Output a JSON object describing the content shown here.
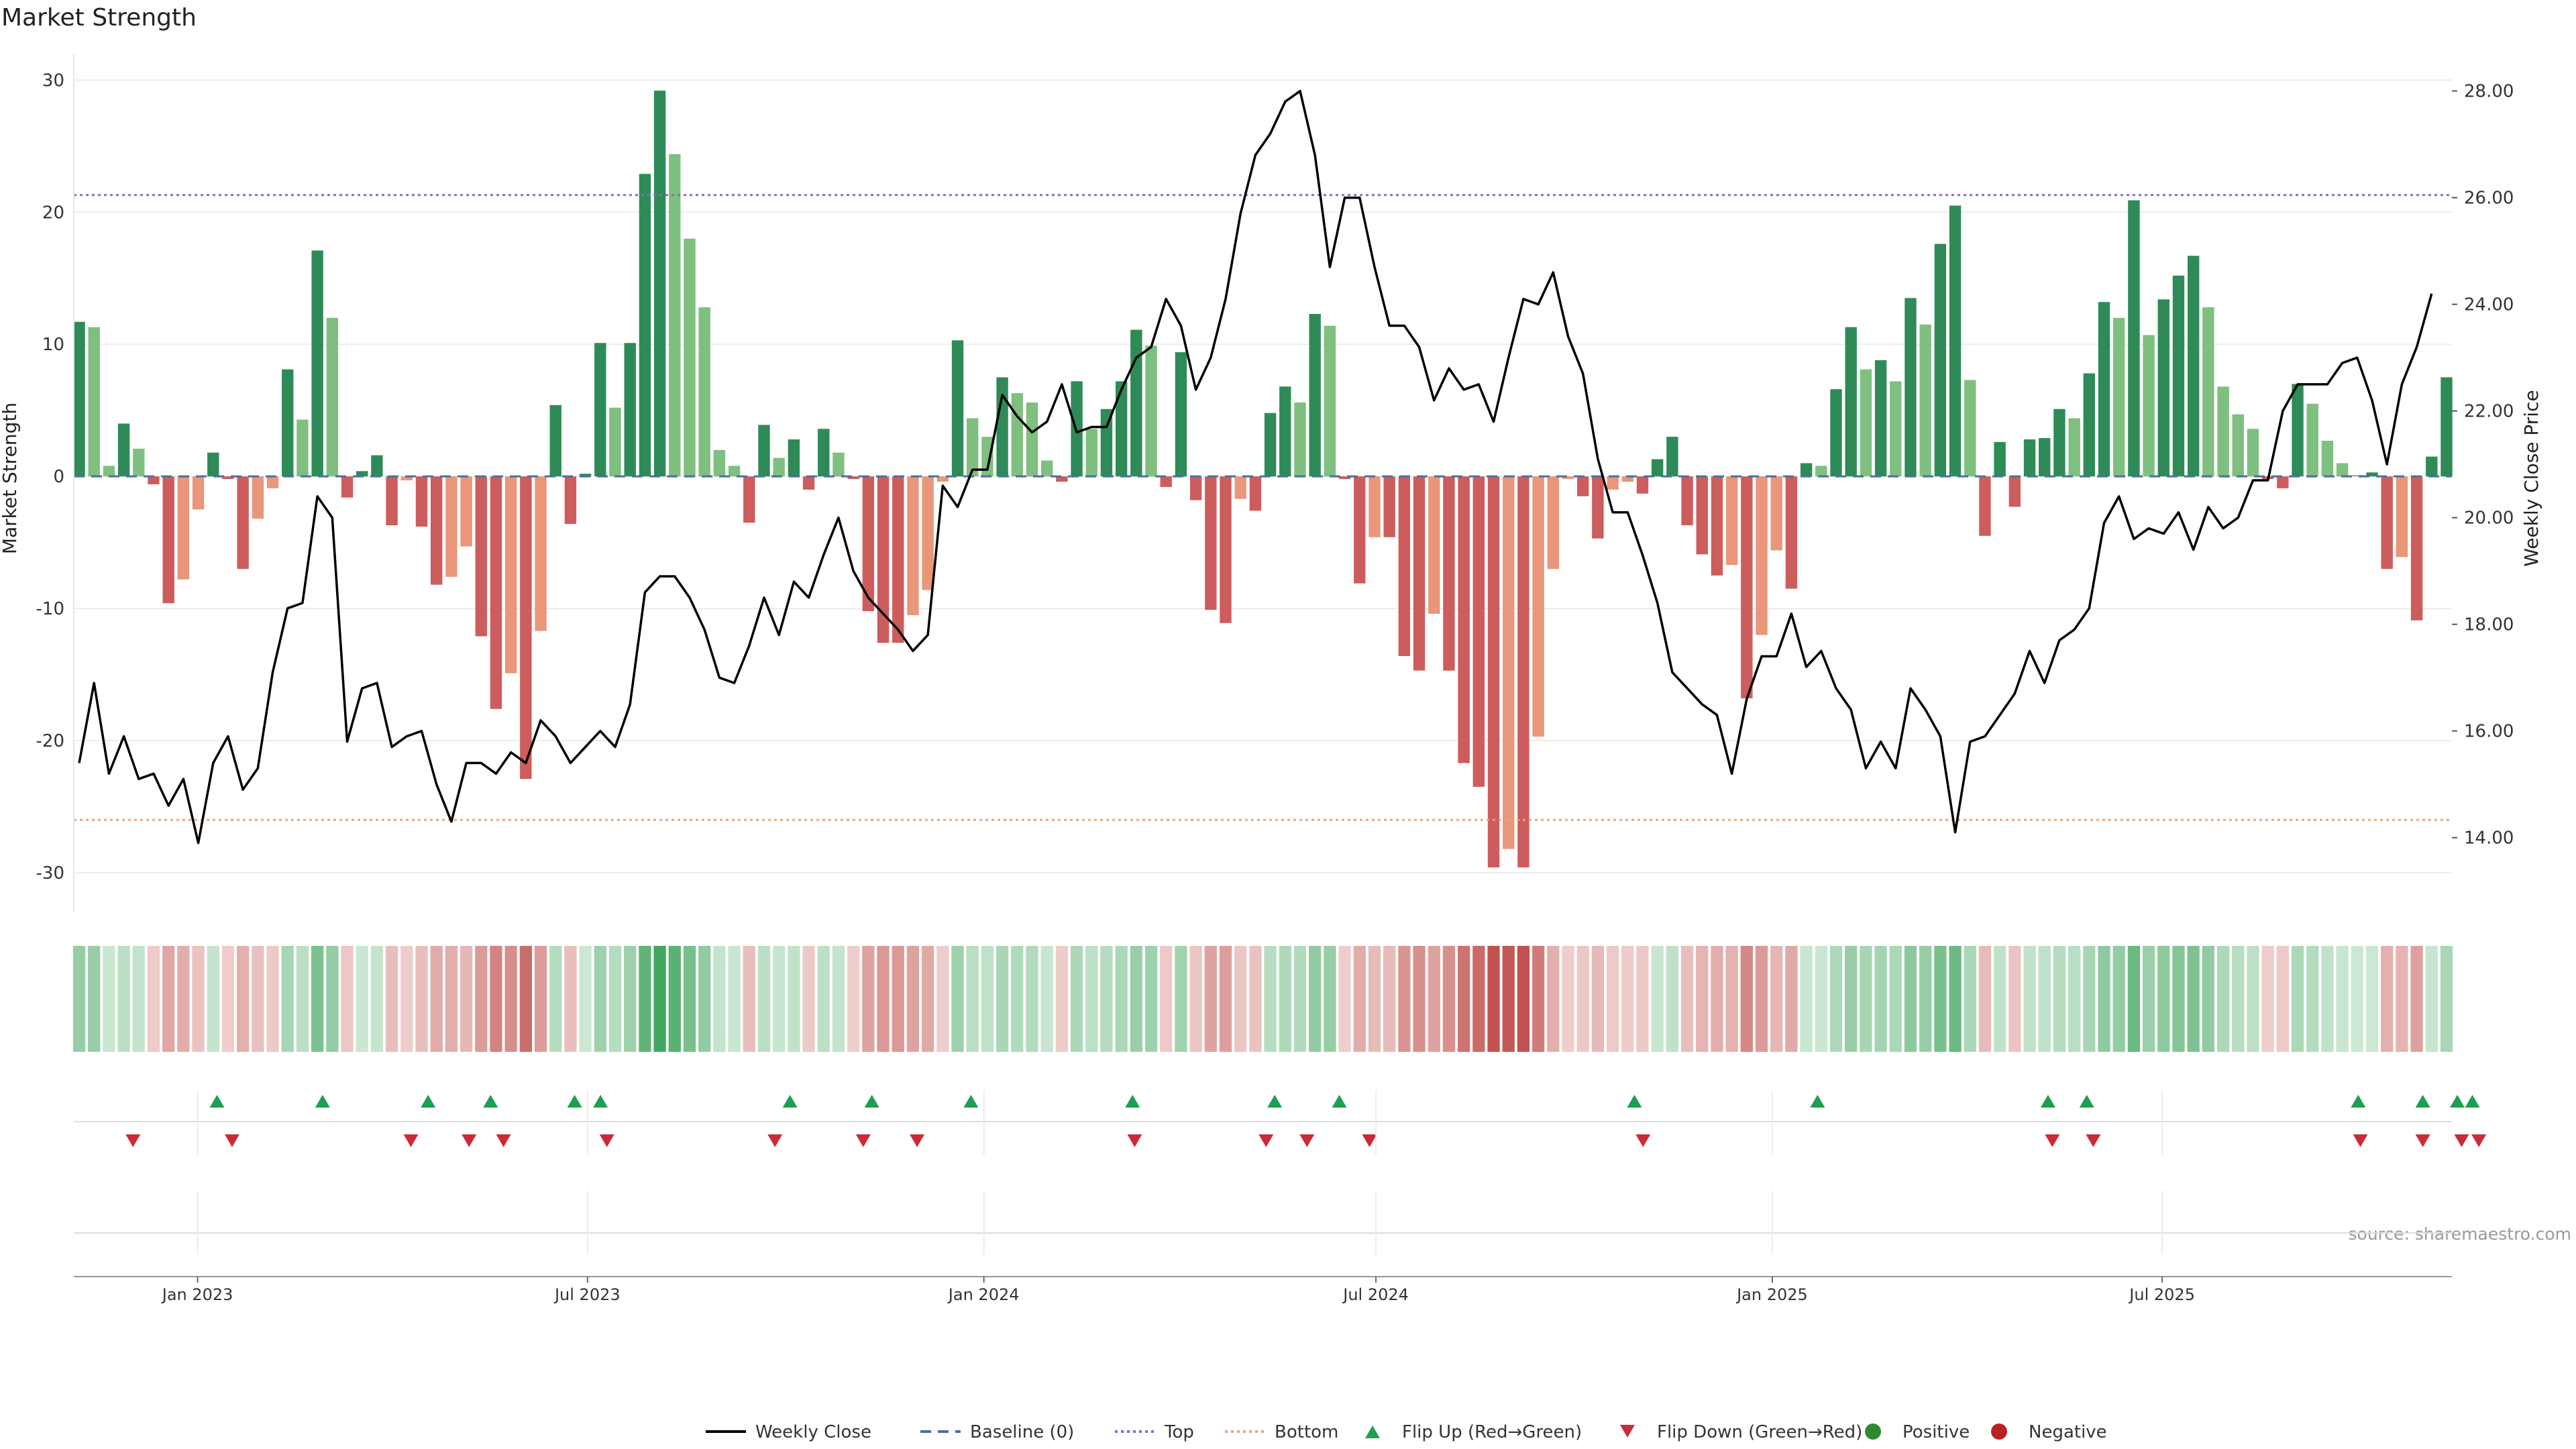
{
  "chart_data": {
    "type": "bar",
    "title": "Market Strength",
    "ylabel_left": "Market Strength",
    "ylabel_right": "Weekly Close Price",
    "source": "source: sharemaestro.com",
    "ylim_left": [
      -33,
      32
    ],
    "ylim_right": [
      12.6,
      28.7
    ],
    "yticks_left": [
      30,
      20,
      10,
      0,
      -10,
      -20,
      -30
    ],
    "yticks_right": [
      "28.00",
      "26.00",
      "24.00",
      "22.00",
      "20.00",
      "18.00",
      "16.00",
      "14.00"
    ],
    "x_start": "2022-11-07",
    "x_end": "2025-11-10",
    "x_ticks": [
      {
        "date": "2023-01-01",
        "label": "Jan 2023"
      },
      {
        "date": "2023-07-01",
        "label": "Jul 2023"
      },
      {
        "date": "2024-01-01",
        "label": "Jan 2024"
      },
      {
        "date": "2024-07-01",
        "label": "Jul 2024"
      },
      {
        "date": "2025-01-01",
        "label": "Jan 2025"
      },
      {
        "date": "2025-07-01",
        "label": "Jul 2025"
      }
    ],
    "top_line": 21.3,
    "bottom_line": -26.0,
    "strength": [
      11.7,
      11.3,
      0.8,
      4.0,
      2.1,
      -0.6,
      -9.6,
      -7.8,
      -2.5,
      1.8,
      -0.2,
      -7.0,
      -3.2,
      -0.9,
      8.1,
      4.3,
      17.1,
      12.0,
      -1.6,
      0.4,
      1.6,
      -3.7,
      -0.3,
      -3.8,
      -8.2,
      -7.6,
      -5.3,
      -12.1,
      -17.6,
      -14.9,
      -22.9,
      -11.7,
      5.4,
      -3.6,
      0.2,
      10.1,
      5.2,
      10.1,
      22.9,
      29.2,
      24.4,
      18.0,
      12.8,
      2.0,
      0.8,
      -3.5,
      3.9,
      1.4,
      2.8,
      -1.0,
      3.6,
      1.8,
      -0.2,
      -10.2,
      -12.6,
      -12.6,
      -10.5,
      -8.6,
      -0.4,
      10.3,
      4.4,
      3.0,
      7.5,
      6.3,
      5.6,
      1.2,
      -0.4,
      7.2,
      3.6,
      5.1,
      7.2,
      11.1,
      9.9,
      -0.8,
      9.4,
      -1.8,
      -10.1,
      -11.1,
      -1.7,
      -2.6,
      4.8,
      6.8,
      5.6,
      12.3,
      11.4,
      -0.2,
      -8.1,
      -4.6,
      -4.6,
      -13.6,
      -14.7,
      -10.4,
      -14.7,
      -21.7,
      -23.5,
      -29.6,
      -28.2,
      -29.6,
      -19.7,
      -7.0,
      -0.2,
      -1.5,
      -4.7,
      -1.0,
      -0.4,
      -1.3,
      1.3,
      3.0,
      -3.7,
      -5.9,
      -7.5,
      -6.7,
      -16.8,
      -12.0,
      -5.6,
      -8.5,
      1.0,
      0.8,
      6.6,
      11.3,
      8.1,
      8.8,
      7.2,
      13.5,
      11.5,
      17.6,
      20.5,
      7.3,
      -4.5,
      2.6,
      -2.3,
      2.8,
      2.9,
      5.1,
      4.4,
      7.8,
      13.2,
      12.0,
      20.9,
      10.7,
      13.4,
      15.2,
      16.7,
      12.8,
      6.8,
      4.7,
      3.6,
      -0.2,
      -0.9,
      7.0,
      5.5,
      2.7,
      1.0,
      0.1,
      0.3,
      -7.0,
      -6.1,
      -10.9,
      1.5,
      7.5
    ],
    "close": [
      15.4,
      16.9,
      15.2,
      15.9,
      15.1,
      15.2,
      14.6,
      15.1,
      13.9,
      15.4,
      15.9,
      14.9,
      15.3,
      17.1,
      18.3,
      18.4,
      20.4,
      20.0,
      15.8,
      16.8,
      16.9,
      15.7,
      15.9,
      16.0,
      15.0,
      14.3,
      15.4,
      15.4,
      15.2,
      15.6,
      15.4,
      16.2,
      15.9,
      15.4,
      15.7,
      16.0,
      15.7,
      16.5,
      18.6,
      18.9,
      18.9,
      18.5,
      17.9,
      17.0,
      16.9,
      17.6,
      18.5,
      17.8,
      18.8,
      18.5,
      19.3,
      20.0,
      19.0,
      18.5,
      18.2,
      17.9,
      17.5,
      17.8,
      20.6,
      20.2,
      20.9,
      20.9,
      22.3,
      21.9,
      21.6,
      21.8,
      22.5,
      21.6,
      21.7,
      21.7,
      22.4,
      23.0,
      23.2,
      24.1,
      23.6,
      22.4,
      23.0,
      24.1,
      25.7,
      26.8,
      27.2,
      27.8,
      28.0,
      26.8,
      24.7,
      26.0,
      26.0,
      24.7,
      23.6,
      23.6,
      23.2,
      22.2,
      22.8,
      22.4,
      22.5,
      21.8,
      23.0,
      24.1,
      24.0,
      24.6,
      23.4,
      22.7,
      21.1,
      20.1,
      20.1,
      19.3,
      18.4,
      17.1,
      16.8,
      16.5,
      16.3,
      15.2,
      16.6,
      17.4,
      17.4,
      18.2,
      17.2,
      17.5,
      16.8,
      16.4,
      15.3,
      15.8,
      15.3,
      16.8,
      16.4,
      15.9,
      14.1,
      15.8,
      15.9,
      16.3,
      16.7,
      17.5,
      16.9,
      17.7,
      17.9,
      18.3,
      19.9,
      20.4,
      19.6,
      19.8,
      19.7,
      20.1,
      19.4,
      20.2,
      19.8,
      20.0,
      20.7,
      20.7,
      22.0,
      22.5,
      22.5,
      22.5,
      22.9,
      23.0,
      22.2,
      21.0,
      22.5,
      23.2,
      24.2
    ],
    "flip_up_dates": [
      "2023-01-10",
      "2023-02-28",
      "2023-04-18",
      "2023-05-17",
      "2023-06-25",
      "2023-07-07",
      "2023-10-03",
      "2023-11-10",
      "2023-12-26",
      "2024-03-10",
      "2024-05-15",
      "2024-06-14",
      "2024-10-29",
      "2025-01-22",
      "2025-05-09",
      "2025-05-27",
      "2025-09-30",
      "2025-10-30",
      "2025-11-15",
      "2025-11-22"
    ],
    "flip_down_dates": [
      "2022-12-02",
      "2023-01-17",
      "2023-04-10",
      "2023-05-07",
      "2023-05-23",
      "2023-07-10",
      "2023-09-26",
      "2023-11-06",
      "2023-12-01",
      "2024-03-11",
      "2024-05-11",
      "2024-05-30",
      "2024-06-28",
      "2024-11-02",
      "2025-05-11",
      "2025-05-30",
      "2025-10-01",
      "2025-10-30",
      "2025-11-17",
      "2025-11-25"
    ],
    "legend": [
      {
        "label": "Weekly Close",
        "kind": "line",
        "color": "#000000"
      },
      {
        "label": "Baseline (0)",
        "kind": "dashed",
        "color": "#4a6fa5"
      },
      {
        "label": "Top",
        "kind": "dotted",
        "color": "#8a6bc4"
      },
      {
        "label": "Bottom",
        "kind": "dotted",
        "color": "#e8a577"
      },
      {
        "label": "Flip Up (Red→Green)",
        "kind": "tri-up",
        "color": "#1e9e4f"
      },
      {
        "label": "Flip Down (Green→Red)",
        "kind": "tri-down",
        "color": "#cc2a36"
      },
      {
        "label": "Positive",
        "kind": "dot",
        "color": "#2f8a2f"
      },
      {
        "label": "Negative",
        "kind": "dot",
        "color": "#b82222"
      }
    ],
    "legend_position": "bottom-center",
    "grid": true
  },
  "colors": {
    "strong_pos": "#2e8b57",
    "weak_pos": "#7fbf7f",
    "strong_neg": "#cd5c5c",
    "weak_neg": "#e9967a",
    "close_line": "#000000",
    "top_line": "#8a6bc4",
    "bottom_line": "#e8a577",
    "baseline": "#4a6fa5"
  }
}
